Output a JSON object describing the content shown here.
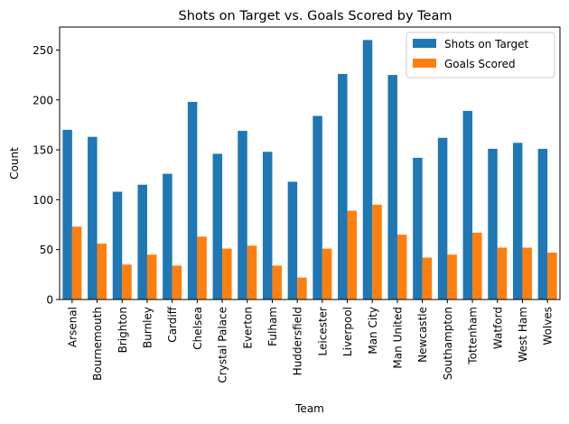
{
  "chart_data": {
    "type": "bar",
    "title": "Shots on Target vs. Goals Scored by Team",
    "xlabel": "Team",
    "ylabel": "Count",
    "ylim": [
      0,
      273
    ],
    "yticks": [
      0,
      50,
      100,
      150,
      200,
      250
    ],
    "grid": false,
    "legend_position": "top-right",
    "categories": [
      "Arsenal",
      "Bournemouth",
      "Brighton",
      "Burnley",
      "Cardiff",
      "Chelsea",
      "Crystal Palace",
      "Everton",
      "Fulham",
      "Huddersfield",
      "Leicester",
      "Liverpool",
      "Man City",
      "Man United",
      "Newcastle",
      "Southampton",
      "Tottenham",
      "Watford",
      "West Ham",
      "Wolves"
    ],
    "series": [
      {
        "name": "Shots on Target",
        "color": "#1f77b4",
        "values": [
          170,
          163,
          108,
          115,
          126,
          198,
          146,
          169,
          148,
          118,
          184,
          226,
          260,
          225,
          142,
          162,
          189,
          151,
          157,
          151
        ]
      },
      {
        "name": "Goals Scored",
        "color": "#ff7f0e",
        "values": [
          73,
          56,
          35,
          45,
          34,
          63,
          51,
          54,
          34,
          22,
          51,
          89,
          95,
          65,
          42,
          45,
          67,
          52,
          52,
          47
        ]
      }
    ]
  }
}
